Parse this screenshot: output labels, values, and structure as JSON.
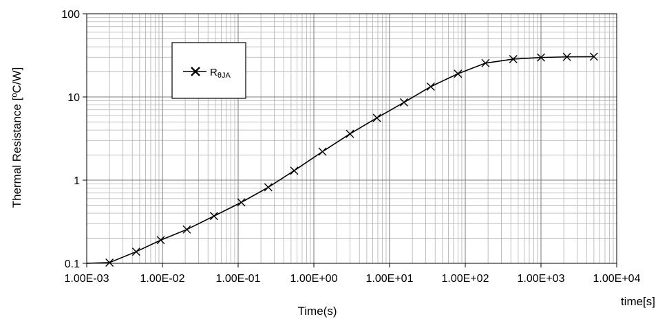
{
  "chart_data": {
    "type": "line",
    "title": "",
    "xlabel": "Time(s)",
    "x_unit_label": "time[s]",
    "ylabel": "Thermal Resistance [ºC/W]",
    "xscale": "log",
    "yscale": "log",
    "xlim": [
      0.001,
      10000
    ],
    "ylim": [
      0.1,
      100
    ],
    "grid": true,
    "legend_position": "top-left",
    "x_tick_labels": [
      "1.00E-03",
      "1.00E-02",
      "1.00E-01",
      "1.00E+00",
      "1.00E+01",
      "1.00E+02",
      "1.00E+03",
      "1.00E+04"
    ],
    "y_tick_labels": [
      "0.1",
      "1",
      "10",
      "100"
    ],
    "series": [
      {
        "name": "R",
        "name_subscript": "θJA",
        "marker": "x",
        "color": "#000000",
        "x": [
          0.0009,
          0.002,
          0.0045,
          0.0095,
          0.021,
          0.048,
          0.11,
          0.25,
          0.55,
          1.3,
          3.0,
          6.8,
          15.5,
          35,
          80,
          185,
          430,
          1000,
          2200,
          5000
        ],
        "y": [
          0.09,
          0.102,
          0.138,
          0.19,
          0.255,
          0.37,
          0.54,
          0.82,
          1.3,
          2.2,
          3.6,
          5.6,
          8.6,
          13.3,
          19,
          25.5,
          28.5,
          29.8,
          30.3,
          30.5
        ],
        "marker_x": [
          0.002,
          0.0045,
          0.0095,
          0.021,
          0.048,
          0.11,
          0.25,
          0.55,
          1.3,
          3.0,
          6.8,
          15.5,
          35,
          80,
          185,
          430,
          1000,
          2200,
          5000
        ],
        "marker_y": [
          0.102,
          0.138,
          0.19,
          0.255,
          0.37,
          0.54,
          0.82,
          1.3,
          2.2,
          3.6,
          5.6,
          8.6,
          13.3,
          19,
          25.5,
          28.5,
          29.8,
          30.3,
          30.5
        ]
      }
    ]
  }
}
